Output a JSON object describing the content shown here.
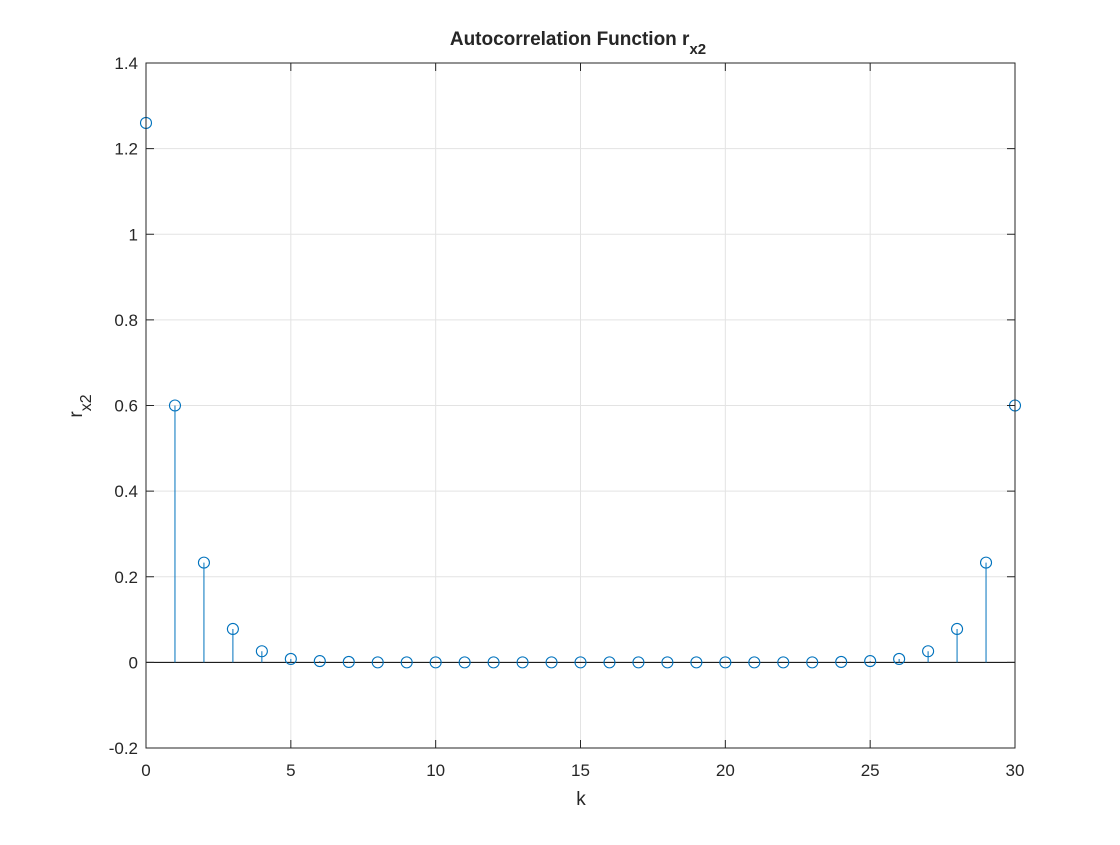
{
  "chart_data": {
    "type": "stem",
    "title": "Autocorrelation Function r",
    "title_subscript": "x2",
    "xlabel": "k",
    "ylabel": "r",
    "ylabel_subscript": "x2",
    "xlim": [
      0,
      30
    ],
    "ylim": [
      -0.2,
      1.4
    ],
    "xticks": [
      0,
      5,
      10,
      15,
      20,
      25,
      30
    ],
    "yticks": [
      -0.2,
      0,
      0.2,
      0.4,
      0.6,
      0.8,
      1,
      1.2,
      1.4
    ],
    "xtick_labels": [
      "0",
      "5",
      "10",
      "15",
      "20",
      "25",
      "30"
    ],
    "ytick_labels": [
      "-0.2",
      "0",
      "0.2",
      "0.4",
      "0.6",
      "0.8",
      "1",
      "1.2",
      "1.4"
    ],
    "grid": true,
    "baseline": 0,
    "series": [
      {
        "x": [
          0,
          1,
          2,
          3,
          4,
          5,
          6,
          7,
          8,
          9,
          10,
          11,
          12,
          13,
          14,
          15,
          16,
          17,
          18,
          19,
          20,
          21,
          22,
          23,
          24,
          25,
          26,
          27,
          28,
          29,
          30
        ],
        "values": [
          1.26,
          0.6,
          0.233,
          0.078,
          0.026,
          0.008,
          0.003,
          0.001,
          0,
          0,
          0,
          0,
          0,
          0,
          0,
          0,
          0,
          0,
          0,
          0,
          0,
          0,
          0,
          0,
          0.001,
          0.003,
          0.008,
          0.026,
          0.078,
          0.233,
          0.6
        ],
        "color": "#0072BD",
        "marker": "circle"
      }
    ]
  }
}
